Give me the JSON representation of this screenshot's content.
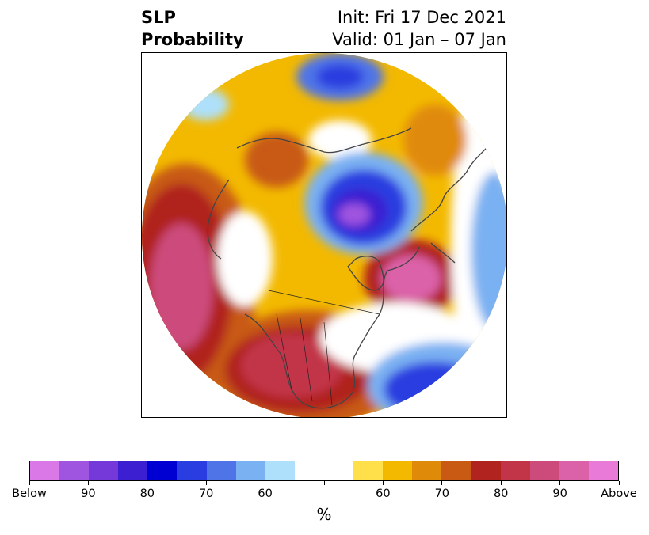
{
  "title": {
    "left_line1": "SLP",
    "left_line2": "Probability",
    "right_line1": "Init: Fri 17 Dec 2021",
    "right_line2": "Valid: 01 Jan – 07 Jan"
  },
  "map": {
    "projection": "north-polar-stereographic",
    "field": "SLP probability",
    "regions": [
      {
        "name": "north-pacific-above",
        "category": "above"
      },
      {
        "name": "conus-above",
        "category": "above"
      },
      {
        "name": "east-canada-above",
        "category": "above"
      },
      {
        "name": "siberia-above",
        "category": "above"
      },
      {
        "name": "arctic-below",
        "category": "below"
      },
      {
        "name": "west-atlantic-below",
        "category": "below"
      },
      {
        "name": "north-atlantic-below",
        "category": "below"
      },
      {
        "name": "north-siberia-below",
        "category": "below"
      }
    ]
  },
  "colorbar": {
    "colors": [
      "#d978e6",
      "#a055e0",
      "#7439d8",
      "#3b1fd0",
      "#0000d2",
      "#2a3de0",
      "#4f74e8",
      "#7ab1f2",
      "#aee0fb",
      "#ffffff",
      "#ffffff",
      "#ffe04a",
      "#f3b900",
      "#e08a0a",
      "#c85a14",
      "#b0231f",
      "#c23448",
      "#cc4b7b",
      "#db62a9",
      "#ea7ad8"
    ],
    "ticks": [
      "Below",
      "90",
      "80",
      "70",
      "60",
      "",
      "60",
      "70",
      "80",
      "90",
      "Above"
    ],
    "unit": "%"
  }
}
